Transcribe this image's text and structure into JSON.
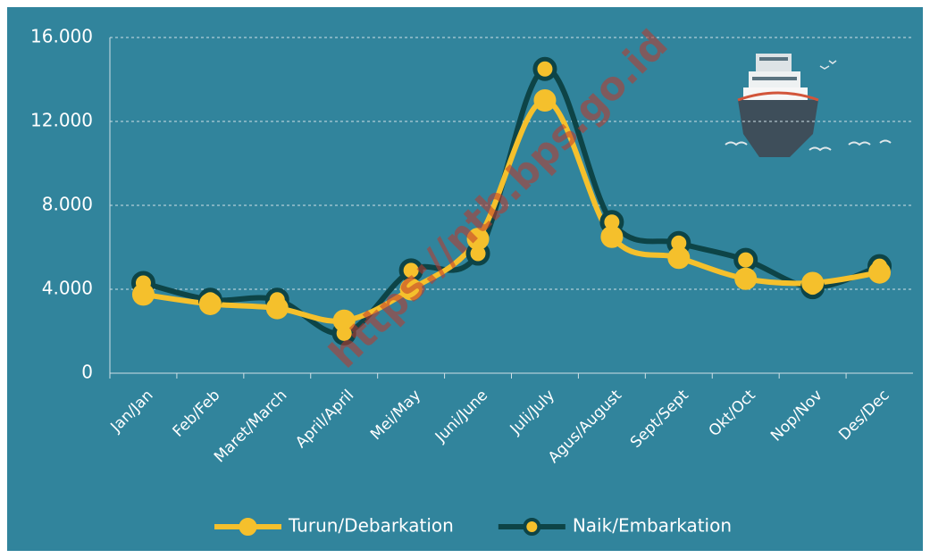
{
  "chart_data": {
    "type": "line",
    "watermark": "https://ntb.bps.go.id",
    "categories": [
      "Jan/Jan",
      "Feb/Feb",
      "Maret/March",
      "April/April",
      "Mei/May",
      "Juni/June",
      "Juli/July",
      "Agus/August",
      "Sept/Sept",
      "Okt/Oct",
      "Nop/Nov",
      "Des/Dec"
    ],
    "series": [
      {
        "name": "Turun/Debarkation",
        "color": "#f5c02c",
        "values": [
          3750,
          3300,
          3100,
          2500,
          4000,
          6400,
          13000,
          6500,
          5500,
          4500,
          4300,
          4800
        ]
      },
      {
        "name": "Naik/Embarkation",
        "color": "#0d4447",
        "values": [
          4300,
          3500,
          3500,
          1900,
          4900,
          5700,
          14500,
          7200,
          6200,
          5400,
          4100,
          5100
        ]
      }
    ],
    "ylim": [
      0,
      16000
    ],
    "yticks": [
      0,
      {
        "value": 4000,
        "label": "4.000"
      },
      {
        "value": 8000,
        "label": "8.000"
      },
      {
        "value": 12000,
        "label": "12.000"
      },
      {
        "value": 16000,
        "label": "16.000"
      }
    ],
    "grid": true,
    "smooth": true,
    "background": "#31849c",
    "legend": "bottom"
  }
}
